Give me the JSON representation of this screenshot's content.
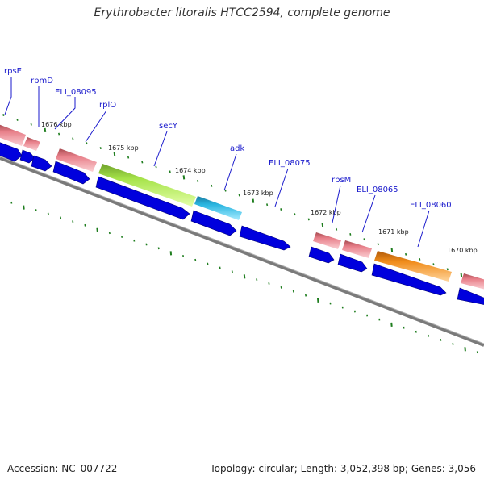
{
  "title": "Erythrobacter litoralis HTCC2594, complete genome",
  "footer": {
    "accession": "Accession: NC_007722",
    "summary": "Topology: circular; Length: 3,052,398 bp; Genes: 3,056"
  },
  "colors": {
    "backbone": "#808080",
    "tick": "#1e7d1e",
    "cds_blue": "#0000dd",
    "gene_pink": "#e88088",
    "secY": "#a6e34a",
    "adk": "#29b5e0",
    "ELI_08060": "#f08c1a",
    "label": "#1a1acc"
  },
  "kbp_labels": [
    "1676 kbp",
    "1675 kbp",
    "1674 kbp",
    "1673 kbp",
    "1672 kbp",
    "1671 kbp",
    "1670 kbp"
  ],
  "genes": [
    {
      "label": "rpsE",
      "color": "pink",
      "icon": "gene-feature"
    },
    {
      "label": "rpmD",
      "color": "pink",
      "icon": "gene-feature"
    },
    {
      "label": "ELI_08095",
      "color": "pink",
      "icon": "gene-feature"
    },
    {
      "label": "rplO",
      "color": "pink",
      "icon": "gene-feature"
    },
    {
      "label": "secY",
      "color": "secY",
      "icon": "gene-feature"
    },
    {
      "label": "adk",
      "color": "adk",
      "icon": "gene-feature"
    },
    {
      "label": "ELI_08075",
      "color": "none",
      "icon": "gene-feature"
    },
    {
      "label": "rpsM",
      "color": "pink",
      "icon": "gene-feature"
    },
    {
      "label": "ELI_08065",
      "color": "pink",
      "icon": "gene-feature"
    },
    {
      "label": "ELI_08060",
      "color": "ELI_08060",
      "icon": "gene-feature"
    }
  ]
}
